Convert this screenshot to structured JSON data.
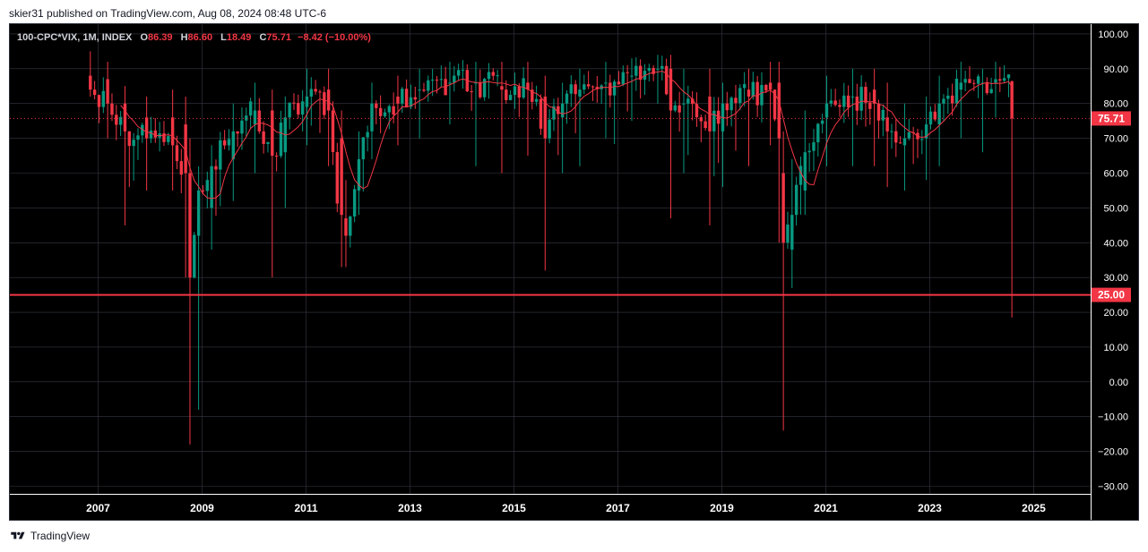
{
  "header": {
    "published_text": "skier31 published on TradingView.com, Aug 08, 2024 08:48 UTC-6"
  },
  "legend": {
    "symbol": "100-CPC*VIX, 1M, INDEX",
    "open_label": "O",
    "open": "86.39",
    "high_label": "H",
    "high": "86.60",
    "low_label": "L",
    "low": "18.49",
    "close_label": "C",
    "close": "75.71",
    "change": "−8.42 (−10.00%)"
  },
  "footer": {
    "brand": "TradingView"
  },
  "colors": {
    "background": "#000000",
    "grid": "#363a45",
    "up": "#089981",
    "down": "#f23645",
    "ma": "#f23645",
    "axis_text": "#ffffff"
  },
  "chart_data": {
    "type": "candlestick",
    "title": "100-CPC*VIX, 1M, INDEX",
    "ylim": [
      -30,
      105
    ],
    "xlim": [
      2006.0,
      2026.0
    ],
    "x_ticks": [
      "2007",
      "2009",
      "2011",
      "2013",
      "2015",
      "2017",
      "2019",
      "2021",
      "2023",
      "2025"
    ],
    "y_ticks": [
      "100.00",
      "90.00",
      "80.00",
      "70.00",
      "60.00",
      "50.00",
      "40.00",
      "30.00",
      "20.00",
      "10.00",
      "0.00",
      "−10.00",
      "−20.00",
      "−30.00"
    ],
    "last_price": {
      "value": 75.71,
      "label": "75.71",
      "line_style": "dotted"
    },
    "horizontal_line": {
      "value": 25.0,
      "label": "25.00"
    },
    "anchors": [
      [
        2006.85,
        88,
        84,
        95,
        82
      ],
      [
        2007.15,
        87,
        80,
        92,
        70
      ],
      [
        2007.5,
        80,
        72,
        85,
        45
      ],
      [
        2007.9,
        76,
        70,
        82,
        55
      ],
      [
        2008.4,
        76,
        68,
        84,
        55
      ],
      [
        2008.7,
        74,
        60,
        82,
        30
      ],
      [
        2008.8,
        60,
        30,
        70,
        -18
      ],
      [
        2008.92,
        42,
        55,
        62,
        -8
      ],
      [
        2009.15,
        50,
        62,
        68,
        38
      ],
      [
        2009.6,
        64,
        72,
        80,
        52
      ],
      [
        2010.0,
        74,
        78,
        86,
        60
      ],
      [
        2010.35,
        78,
        65,
        84,
        30
      ],
      [
        2010.6,
        66,
        76,
        82,
        50
      ],
      [
        2011.0,
        79,
        82,
        90,
        68
      ],
      [
        2011.4,
        84,
        78,
        90,
        62
      ],
      [
        2011.65,
        70,
        48,
        78,
        33
      ],
      [
        2011.8,
        47,
        42,
        58,
        33
      ],
      [
        2012.0,
        55,
        64,
        72,
        48
      ],
      [
        2012.3,
        72,
        80,
        86,
        64
      ],
      [
        2012.8,
        82,
        80,
        88,
        68
      ],
      [
        2013.2,
        84,
        84,
        90,
        70
      ],
      [
        2013.8,
        86,
        86,
        92,
        74
      ],
      [
        2014.3,
        86,
        86,
        92,
        62
      ],
      [
        2014.8,
        85,
        84,
        92,
        60
      ],
      [
        2015.3,
        86,
        84,
        92,
        65
      ],
      [
        2015.6,
        82,
        70,
        88,
        32
      ],
      [
        2015.9,
        76,
        80,
        86,
        60
      ],
      [
        2016.3,
        82,
        84,
        90,
        62
      ],
      [
        2016.8,
        86,
        86,
        92,
        70
      ],
      [
        2017.3,
        88,
        88,
        93,
        75
      ],
      [
        2017.8,
        90,
        90,
        94,
        80
      ],
      [
        2018.05,
        90,
        78,
        94,
        47
      ],
      [
        2018.3,
        80,
        80,
        90,
        60
      ],
      [
        2018.8,
        82,
        72,
        90,
        45
      ],
      [
        2019.0,
        72,
        80,
        86,
        56
      ],
      [
        2019.5,
        84,
        82,
        90,
        62
      ],
      [
        2019.9,
        86,
        84,
        92,
        68
      ],
      [
        2020.1,
        86,
        70,
        92,
        40
      ],
      [
        2020.2,
        60,
        40,
        72,
        -14
      ],
      [
        2020.32,
        38,
        48,
        64,
        27
      ],
      [
        2020.6,
        55,
        66,
        78,
        48
      ],
      [
        2021.0,
        76,
        80,
        88,
        62
      ],
      [
        2021.5,
        82,
        82,
        90,
        62
      ],
      [
        2021.9,
        84,
        80,
        90,
        62
      ],
      [
        2022.2,
        76,
        72,
        86,
        56
      ],
      [
        2022.5,
        68,
        70,
        80,
        55
      ],
      [
        2022.9,
        70,
        74,
        82,
        58
      ],
      [
        2023.2,
        74,
        80,
        88,
        62
      ],
      [
        2023.6,
        84,
        86,
        92,
        70
      ],
      [
        2024.0,
        86,
        86,
        90,
        66
      ],
      [
        2024.3,
        86,
        87,
        92,
        76
      ]
    ],
    "final_candle": {
      "date": "2024-08",
      "open": 86.39,
      "high": 86.6,
      "low": 18.49,
      "close": 75.71
    }
  }
}
